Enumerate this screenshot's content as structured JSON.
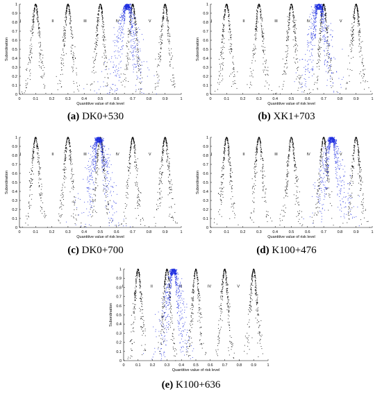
{
  "figure": {
    "ylabel": "Subordination",
    "xlabel": "Quantitive value of risk level",
    "yticks": [
      "0",
      "0.1",
      "0.2",
      "0.3",
      "0.4",
      "0.5",
      "0.6",
      "0.7",
      "0.8",
      "0.9",
      "1"
    ],
    "xticks": [
      "0",
      "0.1",
      "0.2",
      "0.3",
      "0.4",
      "0.5",
      "0.6",
      "0.7",
      "0.8",
      "0.9",
      "1"
    ],
    "grade_labels": [
      "I",
      "II",
      "III",
      "IV",
      "V"
    ],
    "grade_centers": [
      0.1,
      0.3,
      0.5,
      0.7,
      0.9
    ],
    "black_color": "#000000",
    "blue_color": "#1f2fe0"
  },
  "chart_data": [
    {
      "type": "scatter",
      "panel": "(a)",
      "caption_rest": "DK0+530",
      "xlim": [
        0,
        1
      ],
      "ylim": [
        0,
        1
      ],
      "blue_center": 0.665,
      "grid": false
    },
    {
      "type": "scatter",
      "panel": "(b)",
      "caption_rest": "XK1+703",
      "xlim": [
        0,
        1
      ],
      "ylim": [
        0,
        1
      ],
      "blue_center": 0.67,
      "grid": false
    },
    {
      "type": "scatter",
      "panel": "(c)",
      "caption_rest": "DK0+700",
      "xlim": [
        0,
        1
      ],
      "ylim": [
        0,
        1
      ],
      "blue_center": 0.49,
      "grid": false
    },
    {
      "type": "scatter",
      "panel": "(d)",
      "caption_rest": "K100+476",
      "xlim": [
        0,
        1
      ],
      "ylim": [
        0,
        1
      ],
      "blue_center": 0.75,
      "grid": false
    },
    {
      "type": "scatter",
      "panel": "(e)",
      "caption_rest": "K100+636",
      "xlim": [
        0,
        1
      ],
      "ylim": [
        0,
        1
      ],
      "blue_center": 0.345,
      "grid": false
    }
  ]
}
